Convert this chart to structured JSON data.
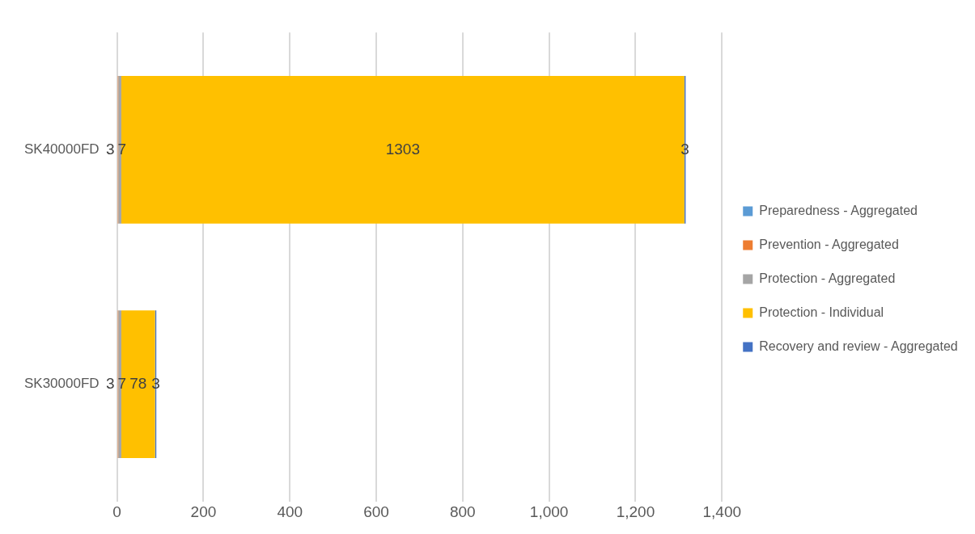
{
  "chart_data": {
    "type": "bar",
    "orientation": "horizontal",
    "stacked": true,
    "categories": [
      "SK40000FD",
      "SK30000FD"
    ],
    "series": [
      {
        "name": "Preparedness - Aggregated",
        "color": "#5b9bd5",
        "values": [
          null,
          null
        ]
      },
      {
        "name": "Prevention - Aggregated",
        "color": "#ed7d31",
        "values": [
          3,
          3
        ]
      },
      {
        "name": "Protection - Aggregated",
        "color": "#a5a5a5",
        "values": [
          7,
          7
        ]
      },
      {
        "name": "Protection - Individual",
        "color": "#ffc000",
        "values": [
          1303,
          78
        ]
      },
      {
        "name": "Recovery and review - Aggregated",
        "color": "#4472c4",
        "values": [
          3,
          3
        ]
      }
    ],
    "xlim": [
      0,
      1400
    ],
    "xticks": [
      0,
      200,
      400,
      600,
      800,
      {
        "value": 1000,
        "label": "1,000"
      },
      {
        "value": 1200,
        "label": "1,200"
      },
      {
        "value": 1400,
        "label": "1,400"
      }
    ],
    "grid": "x",
    "legend": "right",
    "data_labels": true
  }
}
